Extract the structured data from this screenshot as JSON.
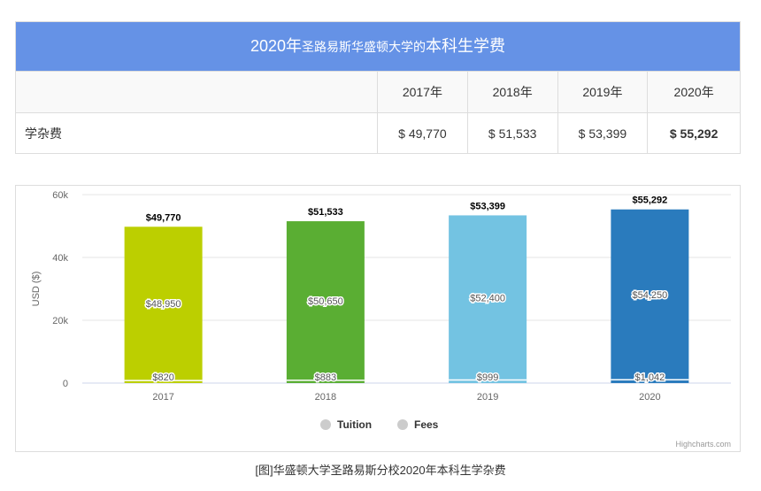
{
  "table": {
    "title_part1": "2020年",
    "title_part2": "圣路易斯华盛顿大学的",
    "title_part3": "本科生学费",
    "header_years": [
      "2017年",
      "2018年",
      "2019年",
      "2020年"
    ],
    "row_label": "学杂费",
    "row_values": [
      "$ 49,770",
      "$ 51,533",
      "$ 53,399",
      "$ 55,292"
    ],
    "header_bg": "#6592e6"
  },
  "chart_data": {
    "type": "bar",
    "stacked": true,
    "categories": [
      "2017",
      "2018",
      "2019",
      "2020"
    ],
    "series": [
      {
        "name": "Tuition",
        "values": [
          48950,
          50650,
          52400,
          54250
        ],
        "labels": [
          "$48,950",
          "$50,650",
          "$52,400",
          "$54,250"
        ]
      },
      {
        "name": "Fees",
        "values": [
          820,
          883,
          999,
          1042
        ],
        "labels": [
          "$820",
          "$883",
          "$999",
          "$1,042"
        ]
      }
    ],
    "totals": [
      "$49,770",
      "$51,533",
      "$53,399",
      "$55,292"
    ],
    "total_values": [
      49770,
      51533,
      53399,
      55292
    ],
    "bar_colors": [
      "#bccf00",
      "#5aae33",
      "#73c3e2",
      "#2a7bbd"
    ],
    "ylabel": "USD ($)",
    "yticks": [
      0,
      20000,
      40000,
      60000
    ],
    "ytick_labels": [
      "0",
      "20k",
      "40k",
      "60k"
    ],
    "ylim": [
      0,
      60000
    ],
    "legend": [
      "Tuition",
      "Fees"
    ],
    "credit": "Highcharts.com"
  },
  "caption": "[图]华盛顿大学圣路易斯分校2020年本科生学杂费"
}
